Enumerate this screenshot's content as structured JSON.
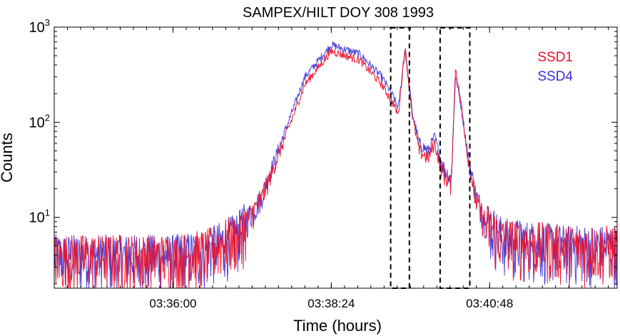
{
  "chart_data": {
    "type": "line",
    "title": "SAMPEX/HILT DOY 308 1993",
    "xlabel": "Time (hours)",
    "ylabel": "Counts",
    "yscale": "log",
    "xlim": [
      "03:34:12",
      "03:42:44"
    ],
    "ylim": [
      1.8,
      1000
    ],
    "x_ticks": [
      "03:36:00",
      "03:38:24",
      "03:40:48"
    ],
    "y_ticks": [
      {
        "base": "10",
        "exp": "1",
        "value": 10
      },
      {
        "base": "10",
        "exp": "2",
        "value": 100
      },
      {
        "base": "10",
        "exp": "3",
        "value": 1000
      }
    ],
    "legend_position": "top-right",
    "series": [
      {
        "name": "SSD1",
        "color": "#e8112d",
        "x": [
          "03:34:12",
          "03:35:00",
          "03:36:00",
          "03:36:30",
          "03:37:00",
          "03:37:20",
          "03:37:40",
          "03:38:00",
          "03:38:24",
          "03:38:50",
          "03:39:10",
          "03:39:20",
          "03:39:25",
          "03:39:31",
          "03:39:38",
          "03:39:44",
          "03:39:52",
          "03:39:58",
          "03:40:05",
          "03:40:13",
          "03:40:17",
          "03:40:22",
          "03:40:28",
          "03:40:35",
          "03:40:43",
          "03:41:00",
          "03:42:00",
          "03:42:44"
        ],
        "y": [
          4,
          4,
          4,
          4.5,
          7,
          15,
          60,
          250,
          560,
          450,
          250,
          160,
          120,
          620,
          110,
          50,
          42,
          60,
          30,
          22,
          380,
          160,
          45,
          16,
          9,
          6,
          5,
          5
        ]
      },
      {
        "name": "SSD4",
        "color": "#3a2fd6",
        "x": [
          "03:34:12",
          "03:35:00",
          "03:36:00",
          "03:36:30",
          "03:37:00",
          "03:37:20",
          "03:37:40",
          "03:38:00",
          "03:38:24",
          "03:38:50",
          "03:39:10",
          "03:39:20",
          "03:39:25",
          "03:39:31",
          "03:39:38",
          "03:39:44",
          "03:39:52",
          "03:39:58",
          "03:40:05",
          "03:40:13",
          "03:40:17",
          "03:40:22",
          "03:40:28",
          "03:40:35",
          "03:40:43",
          "03:41:00",
          "03:42:00",
          "03:42:44"
        ],
        "y": [
          4,
          4,
          4,
          4.5,
          7,
          16,
          70,
          300,
          650,
          520,
          300,
          190,
          140,
          580,
          120,
          60,
          50,
          70,
          35,
          25,
          310,
          150,
          48,
          18,
          10,
          6,
          5,
          5
        ]
      }
    ],
    "highlight_boxes": [
      {
        "x_start": "03:39:18",
        "x_end": "03:39:35",
        "y_start": 1.8,
        "y_end": 1000
      },
      {
        "x_start": "03:40:03",
        "x_end": "03:40:30",
        "y_start": 1.8,
        "y_end": 1000
      }
    ]
  }
}
